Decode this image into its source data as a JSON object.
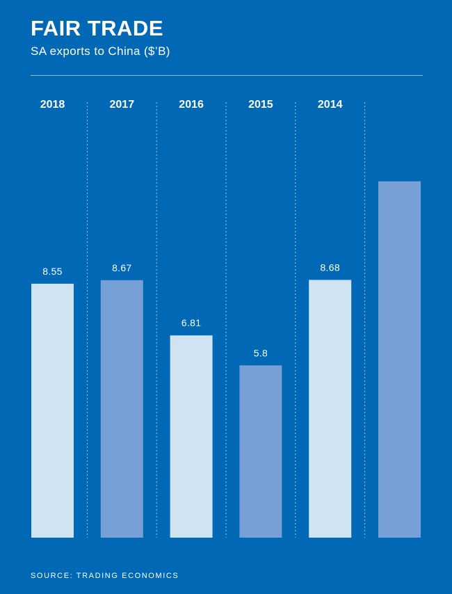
{
  "title": "FAIR TRADE",
  "subtitle": "SA exports to China ($’B)",
  "source": "SOURCE: TRADING ECONOMICS",
  "colors": {
    "background": "#0068b5",
    "bar_light": "#cfe3f2",
    "bar_mid": "#76a0d6",
    "divider": "#9fc8ec"
  },
  "chart_data": {
    "type": "bar",
    "categories": [
      "2018",
      "2017",
      "2016",
      "2015",
      "2014",
      ""
    ],
    "values": [
      8.55,
      8.67,
      6.81,
      5.8,
      8.68,
      null
    ],
    "value_labels": [
      "8.55",
      "8.67",
      "6.81",
      "5.8",
      "8.68",
      ""
    ],
    "unit": "$'B",
    "ylim": [
      0,
      12.7
    ],
    "grid": false,
    "legend": "none"
  }
}
